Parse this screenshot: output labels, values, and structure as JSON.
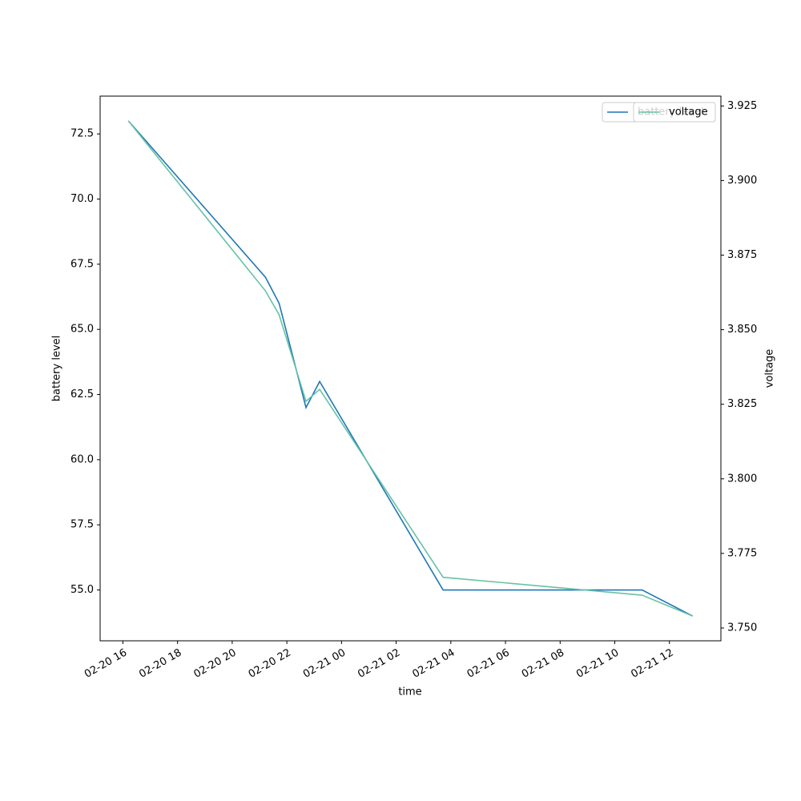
{
  "chart_data": {
    "type": "line",
    "x": [
      "02-20 16:12",
      "02-20 21:13",
      "02-20 21:43",
      "02-20 22:42",
      "02-20 23:12",
      "02-21 03:43",
      "02-21 11:00",
      "02-21 12:51"
    ],
    "series": [
      {
        "name": "battery level",
        "color": "#1f77b4",
        "values": [
          73,
          67,
          66,
          62,
          63,
          55,
          55,
          54
        ]
      },
      {
        "name": "voltage",
        "color": "#66c2a5",
        "axis": "y2",
        "values": [
          3.92,
          3.863,
          3.855,
          3.826,
          3.83,
          3.767,
          3.761,
          3.754
        ]
      }
    ],
    "xlabel": "time",
    "ylabel": "battery level",
    "y2label": "voltage",
    "xlim": [
      "02-20 15:10",
      "02-21 13:53"
    ],
    "xticks": [
      "02-20 16",
      "02-20 18",
      "02-20 20",
      "02-20 22",
      "02-21 00",
      "02-21 02",
      "02-21 04",
      "02-21 06",
      "02-21 08",
      "02-21 10",
      "02-21 12"
    ],
    "ylim": [
      53.05,
      73.95
    ],
    "yticks": [
      {
        "value": 55,
        "label": "55.0"
      },
      57.5,
      {
        "value": 60,
        "label": "60.0"
      },
      62.5,
      {
        "value": 65,
        "label": "65.0"
      },
      67.5,
      {
        "value": 70,
        "label": "70.0"
      },
      72.5
    ],
    "y2lim": [
      3.7457,
      3.9283
    ],
    "y2ticks": [
      {
        "value": 3.75,
        "label": "3.750"
      },
      {
        "value": 3.775,
        "label": "3.775"
      },
      {
        "value": 3.8,
        "label": "3.800"
      },
      {
        "value": 3.825,
        "label": "3.825"
      },
      {
        "value": 3.85,
        "label": "3.850"
      },
      {
        "value": 3.875,
        "label": "3.875"
      },
      {
        "value": 3.9,
        "label": "3.900"
      },
      {
        "value": 3.925,
        "label": "3.925"
      }
    ],
    "legend": "upper right"
  }
}
